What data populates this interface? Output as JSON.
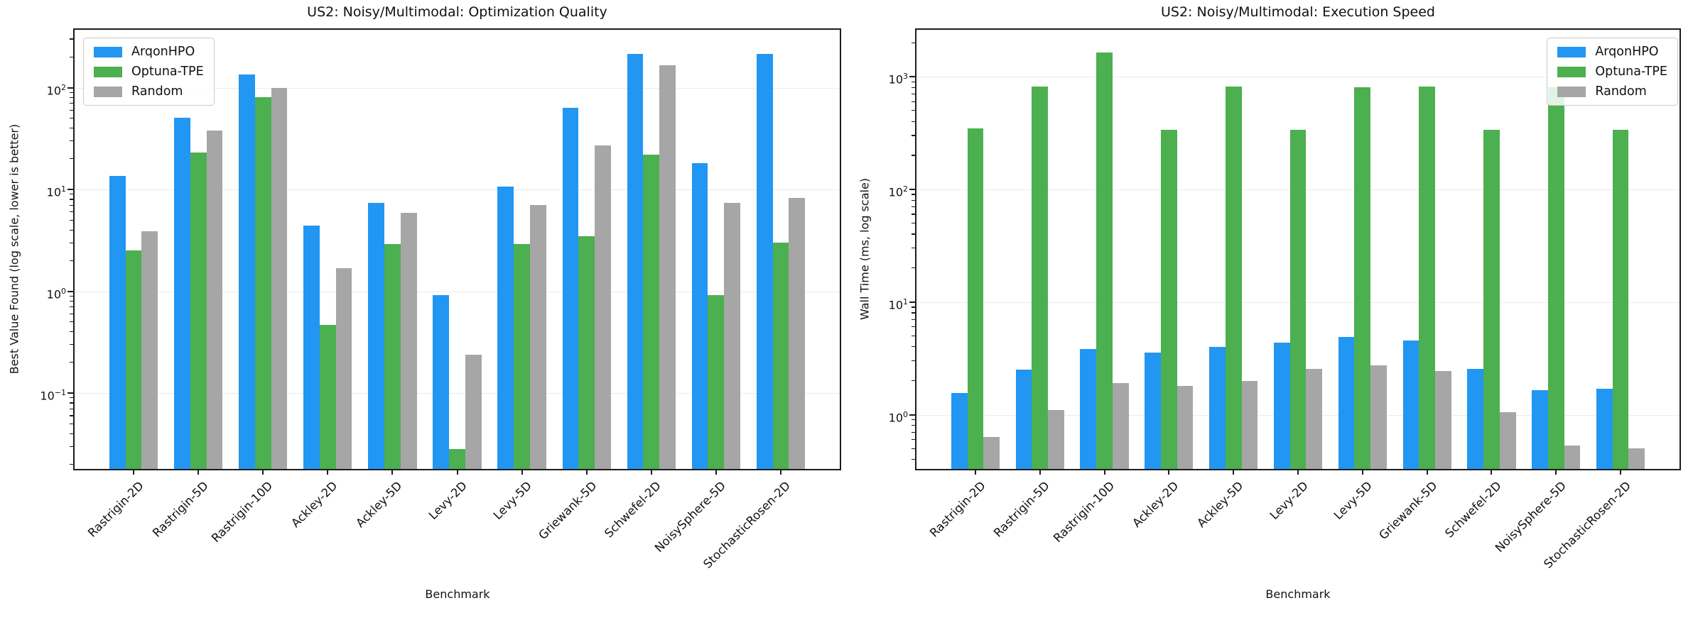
{
  "figure": {
    "background": "#ffffff",
    "spine_color": "#1c1c1c",
    "grid_color": "#ebebeb"
  },
  "chart_data": [
    {
      "type": "bar",
      "title": "US2: Noisy/Multimodal: Optimization Quality",
      "xlabel": "Benchmark",
      "ylabel": "Best Value Found (log scale, lower is better)",
      "yscale": "log",
      "grid": "major-horizontal",
      "legend_position": "top-left",
      "ylim": [
        0.018,
        370
      ],
      "y_tick_exponents": [
        2,
        1,
        0,
        -1
      ],
      "categories": [
        "Rastrigin-2D",
        "Rastrigin-5D",
        "Rastrigin-10D",
        "Ackley-2D",
        "Ackley-5D",
        "Levy-2D",
        "Levy-5D",
        "Griewank-5D",
        "Schwefel-2D",
        "NoisySphere-5D",
        "StochasticRosen-2D"
      ],
      "series": [
        {
          "name": "ArqonHPO",
          "color": "#2196f3",
          "values": [
            13.6,
            51,
            134,
            4.4,
            7.4,
            0.92,
            10.7,
            63,
            215,
            18,
            215
          ]
        },
        {
          "name": "Optuna-TPE",
          "color": "#4caf50",
          "values": [
            2.5,
            23,
            80,
            0.47,
            2.9,
            0.028,
            2.9,
            3.5,
            22,
            0.91,
            3.0
          ]
        },
        {
          "name": "Random",
          "color": "#a6a6a6",
          "values": [
            3.9,
            38,
            100,
            1.7,
            5.9,
            0.24,
            7.0,
            27,
            165,
            7.4,
            8.3
          ]
        }
      ]
    },
    {
      "type": "bar",
      "title": "US2: Noisy/Multimodal: Execution Speed",
      "xlabel": "Benchmark",
      "ylabel": "Wall Time (ms, log scale)",
      "yscale": "log",
      "grid": "major-horizontal",
      "legend_position": "top-right",
      "ylim": [
        0.33,
        2600
      ],
      "y_tick_exponents": [
        3,
        2,
        1,
        0
      ],
      "categories": [
        "Rastrigin-2D",
        "Rastrigin-5D",
        "Rastrigin-10D",
        "Ackley-2D",
        "Ackley-5D",
        "Levy-2D",
        "Levy-5D",
        "Griewank-5D",
        "Schwefel-2D",
        "NoisySphere-5D",
        "StochasticRosen-2D"
      ],
      "series": [
        {
          "name": "ArqonHPO",
          "color": "#2196f3",
          "values": [
            1.55,
            2.5,
            3.8,
            3.55,
            4.0,
            4.35,
            4.9,
            4.55,
            2.55,
            1.65,
            1.7
          ]
        },
        {
          "name": "Optuna-TPE",
          "color": "#4caf50",
          "values": [
            345,
            820,
            1640,
            335,
            820,
            335,
            800,
            810,
            335,
            800,
            335
          ]
        },
        {
          "name": "Random",
          "color": "#a6a6a6",
          "values": [
            0.63,
            1.1,
            1.9,
            1.8,
            2.0,
            2.55,
            2.75,
            2.45,
            1.05,
            0.53,
            0.5
          ]
        }
      ]
    }
  ]
}
